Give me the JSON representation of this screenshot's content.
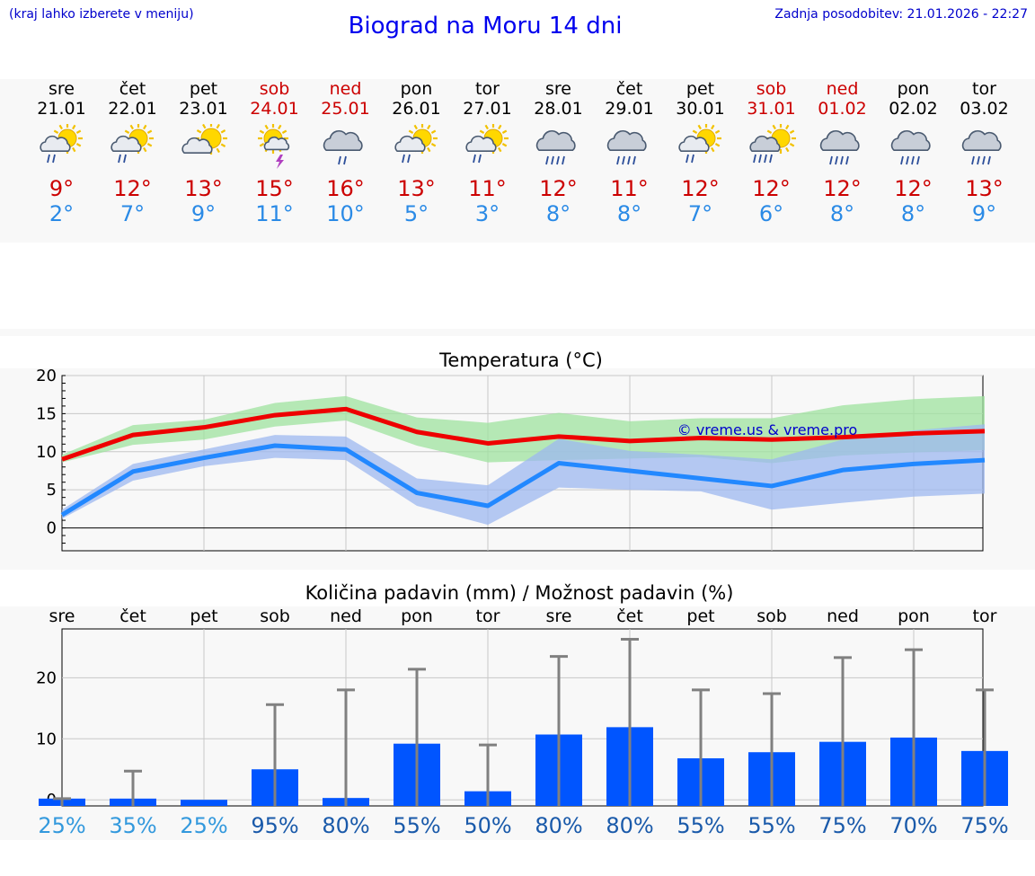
{
  "header": {
    "note": "(kraj lahko izberete v meniju)",
    "title": "Biograd na Moru 14 dni",
    "updated": "Zadnja posodobitev: 21.01.2026 - 22:27"
  },
  "days": [
    {
      "name": "sre",
      "date": "21.01",
      "icon": "sun-cloud-rain-icon",
      "tmax": "9°",
      "tmin": "2°",
      "weekend": false
    },
    {
      "name": "čet",
      "date": "22.01",
      "icon": "sun-cloud-rain-icon",
      "tmax": "12°",
      "tmin": "7°",
      "weekend": false
    },
    {
      "name": "pet",
      "date": "23.01",
      "icon": "sun-cloud-icon",
      "tmax": "13°",
      "tmin": "9°",
      "weekend": false
    },
    {
      "name": "sob",
      "date": "24.01",
      "icon": "sun-thunder-icon",
      "tmax": "15°",
      "tmin": "11°",
      "weekend": true
    },
    {
      "name": "ned",
      "date": "25.01",
      "icon": "cloud-rain-icon",
      "tmax": "16°",
      "tmin": "10°",
      "weekend": true
    },
    {
      "name": "pon",
      "date": "26.01",
      "icon": "sun-cloud-rain-icon",
      "tmax": "13°",
      "tmin": "5°",
      "weekend": false
    },
    {
      "name": "tor",
      "date": "27.01",
      "icon": "sun-cloud-rain-icon",
      "tmax": "11°",
      "tmin": "3°",
      "weekend": false
    },
    {
      "name": "sre",
      "date": "28.01",
      "icon": "cloud-heavy-rain-icon",
      "tmax": "12°",
      "tmin": "8°",
      "weekend": false
    },
    {
      "name": "čet",
      "date": "29.01",
      "icon": "cloud-heavy-rain-icon",
      "tmax": "11°",
      "tmin": "8°",
      "weekend": false
    },
    {
      "name": "pet",
      "date": "30.01",
      "icon": "sun-cloud-rain-icon",
      "tmax": "12°",
      "tmin": "7°",
      "weekend": false
    },
    {
      "name": "sob",
      "date": "31.01",
      "icon": "sun-cloud-heavy-rain-icon",
      "tmax": "12°",
      "tmin": "6°",
      "weekend": true
    },
    {
      "name": "ned",
      "date": "01.02",
      "icon": "cloud-heavy-rain-icon",
      "tmax": "12°",
      "tmin": "8°",
      "weekend": true
    },
    {
      "name": "pon",
      "date": "02.02",
      "icon": "cloud-heavy-rain-icon",
      "tmax": "12°",
      "tmin": "8°",
      "weekend": false
    },
    {
      "name": "tor",
      "date": "03.02",
      "icon": "cloud-heavy-rain-icon",
      "tmax": "13°",
      "tmin": "9°",
      "weekend": false
    }
  ],
  "colors": {
    "max_line": "#ee0000",
    "min_line": "#2288ff",
    "max_band": "#9fe39f",
    "min_band": "#9db8f0",
    "bar": "#0055ff",
    "whisker": "#808080",
    "pct_low": "#3399dd",
    "pct_high": "#1a5aaa"
  },
  "chart_data": [
    {
      "type": "line",
      "title": "Temperatura (°C)",
      "watermark": "© vreme.us & vreme.pro",
      "ylim": [
        -3,
        20
      ],
      "yticks": [
        0,
        5,
        10,
        15,
        20
      ],
      "x": [
        0,
        1,
        2,
        3,
        4,
        5,
        6,
        7,
        8,
        9,
        10,
        11,
        12,
        13
      ],
      "series": [
        {
          "name": "max",
          "values": [
            9,
            12.2,
            13.2,
            14.8,
            15.6,
            12.6,
            11.1,
            12.0,
            11.4,
            11.8,
            11.6,
            11.9,
            12.4,
            12.7
          ]
        },
        {
          "name": "min",
          "values": [
            1.7,
            7.4,
            9.2,
            10.8,
            10.3,
            4.6,
            2.9,
            8.5,
            7.5,
            6.5,
            5.5,
            7.6,
            8.4,
            8.9
          ]
        }
      ],
      "bands": [
        {
          "name": "max-range",
          "low": [
            8.6,
            10.9,
            11.6,
            13.3,
            14.1,
            10.8,
            8.6,
            8.9,
            9.1,
            9.3,
            8.5,
            9.5,
            9.9,
            10.2
          ],
          "high": [
            9.6,
            13.5,
            14.2,
            16.4,
            17.3,
            14.5,
            13.8,
            15.1,
            14.0,
            14.4,
            14.4,
            16.1,
            16.9,
            17.3
          ]
        },
        {
          "name": "min-range",
          "low": [
            1.2,
            6.2,
            8.1,
            9.2,
            8.9,
            2.9,
            0.4,
            5.3,
            5.0,
            4.8,
            2.4,
            3.3,
            4.1,
            4.5
          ],
          "high": [
            2.4,
            8.4,
            10.3,
            12.2,
            12.0,
            6.5,
            5.6,
            11.7,
            10.1,
            9.6,
            9.0,
            11.6,
            12.8,
            13.6
          ]
        }
      ]
    },
    {
      "type": "bar",
      "title": "Količina padavin (mm) / Možnost padavin (%)",
      "categories": [
        "sre",
        "čet",
        "pet",
        "sob",
        "ned",
        "pon",
        "tor",
        "sre",
        "čet",
        "pet",
        "sob",
        "ned",
        "pon",
        "tor"
      ],
      "ylim": [
        -1,
        28
      ],
      "yticks": [
        0,
        10,
        20
      ],
      "values": [
        0.2,
        0.2,
        0,
        5.0,
        0.3,
        9.2,
        1.4,
        10.7,
        11.9,
        6.8,
        7.8,
        9.5,
        10.2,
        8.0
      ],
      "max_values": [
        0.2,
        4.7,
        0,
        15.6,
        18.0,
        21.4,
        9.0,
        23.5,
        26.3,
        18.0,
        17.4,
        23.3,
        24.6,
        18.0
      ],
      "probability": [
        "25%",
        "35%",
        "25%",
        "95%",
        "80%",
        "55%",
        "50%",
        "80%",
        "80%",
        "55%",
        "55%",
        "75%",
        "70%",
        "75%"
      ]
    }
  ]
}
